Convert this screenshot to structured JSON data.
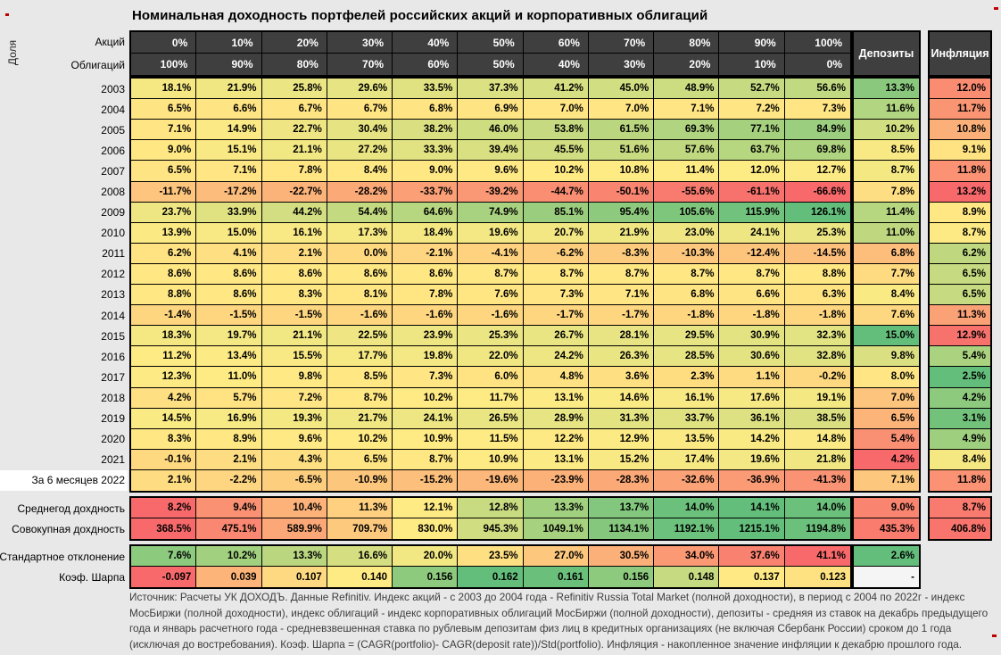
{
  "title": "Номинальная доходность портфелей российских акций и корпоративных облигаций",
  "share_label": "Доля",
  "header": {
    "stocks_label": "Акций",
    "bonds_label": "Облигаций",
    "deposits_label": "Депозиты",
    "inflation_label": "Инфляция"
  },
  "chart_data": {
    "type": "heatmap",
    "title": "Номинальная доходность портфелей российских акций и корпоративных облигаций",
    "stocks_share_pct": [
      0,
      10,
      20,
      30,
      40,
      50,
      60,
      70,
      80,
      90,
      100
    ],
    "bonds_share_pct": [
      100,
      90,
      80,
      70,
      60,
      50,
      40,
      30,
      20,
      10,
      0
    ],
    "rows": [
      {
        "label": "2003",
        "values": [
          18.1,
          21.9,
          25.8,
          29.6,
          33.5,
          37.3,
          41.2,
          45.0,
          48.9,
          52.7,
          56.6
        ],
        "deposit": 13.3,
        "inflation": 12.0
      },
      {
        "label": "2004",
        "values": [
          6.5,
          6.6,
          6.7,
          6.7,
          6.8,
          6.9,
          7.0,
          7.0,
          7.1,
          7.2,
          7.3
        ],
        "deposit": 11.6,
        "inflation": 11.7
      },
      {
        "label": "2005",
        "values": [
          7.1,
          14.9,
          22.7,
          30.4,
          38.2,
          46.0,
          53.8,
          61.5,
          69.3,
          77.1,
          84.9
        ],
        "deposit": 10.2,
        "inflation": 10.8
      },
      {
        "label": "2006",
        "values": [
          9.0,
          15.1,
          21.1,
          27.2,
          33.3,
          39.4,
          45.5,
          51.6,
          57.6,
          63.7,
          69.8
        ],
        "deposit": 8.5,
        "inflation": 9.1
      },
      {
        "label": "2007",
        "values": [
          6.5,
          7.1,
          7.8,
          8.4,
          9.0,
          9.6,
          10.2,
          10.8,
          11.4,
          12.0,
          12.7
        ],
        "deposit": 8.7,
        "inflation": 11.8
      },
      {
        "label": "2008",
        "values": [
          -11.7,
          -17.2,
          -22.7,
          -28.2,
          -33.7,
          -39.2,
          -44.7,
          -50.1,
          -55.6,
          -61.1,
          -66.6
        ],
        "deposit": 7.8,
        "inflation": 13.2
      },
      {
        "label": "2009",
        "values": [
          23.7,
          33.9,
          44.2,
          54.4,
          64.6,
          74.9,
          85.1,
          95.4,
          105.6,
          115.9,
          126.1
        ],
        "deposit": 11.4,
        "inflation": 8.9
      },
      {
        "label": "2010",
        "values": [
          13.9,
          15.0,
          16.1,
          17.3,
          18.4,
          19.6,
          20.7,
          21.9,
          23.0,
          24.1,
          25.3
        ],
        "deposit": 11.0,
        "inflation": 8.7
      },
      {
        "label": "2011",
        "values": [
          6.2,
          4.1,
          2.1,
          0.0,
          -2.1,
          -4.1,
          -6.2,
          -8.3,
          -10.3,
          -12.4,
          -14.5
        ],
        "deposit": 6.8,
        "inflation": 6.2
      },
      {
        "label": "2012",
        "values": [
          8.6,
          8.6,
          8.6,
          8.6,
          8.6,
          8.7,
          8.7,
          8.7,
          8.7,
          8.7,
          8.8
        ],
        "deposit": 7.7,
        "inflation": 6.5
      },
      {
        "label": "2013",
        "values": [
          8.8,
          8.6,
          8.3,
          8.1,
          7.8,
          7.6,
          7.3,
          7.1,
          6.8,
          6.6,
          6.3
        ],
        "deposit": 8.4,
        "inflation": 6.5
      },
      {
        "label": "2014",
        "values": [
          -1.4,
          -1.5,
          -1.5,
          -1.6,
          -1.6,
          -1.6,
          -1.7,
          -1.7,
          -1.8,
          -1.8,
          -1.8
        ],
        "deposit": 7.6,
        "inflation": 11.3
      },
      {
        "label": "2015",
        "values": [
          18.3,
          19.7,
          21.1,
          22.5,
          23.9,
          25.3,
          26.7,
          28.1,
          29.5,
          30.9,
          32.3
        ],
        "deposit": 15.0,
        "inflation": 12.9
      },
      {
        "label": "2016",
        "values": [
          11.2,
          13.4,
          15.5,
          17.7,
          19.8,
          22.0,
          24.2,
          26.3,
          28.5,
          30.6,
          32.8
        ],
        "deposit": 9.8,
        "inflation": 5.4
      },
      {
        "label": "2017",
        "values": [
          12.3,
          11.0,
          9.8,
          8.5,
          7.3,
          6.0,
          4.8,
          3.6,
          2.3,
          1.1,
          -0.2
        ],
        "deposit": 8.0,
        "inflation": 2.5
      },
      {
        "label": "2018",
        "values": [
          4.2,
          5.7,
          7.2,
          8.7,
          10.2,
          11.7,
          13.1,
          14.6,
          16.1,
          17.6,
          19.1
        ],
        "deposit": 7.0,
        "inflation": 4.2
      },
      {
        "label": "2019",
        "values": [
          14.5,
          16.9,
          19.3,
          21.7,
          24.1,
          26.5,
          28.9,
          31.3,
          33.7,
          36.1,
          38.5
        ],
        "deposit": 6.5,
        "inflation": 3.1
      },
      {
        "label": "2020",
        "values": [
          8.3,
          8.9,
          9.6,
          10.2,
          10.9,
          11.5,
          12.2,
          12.9,
          13.5,
          14.2,
          14.8
        ],
        "deposit": 5.4,
        "inflation": 4.9
      },
      {
        "label": "2021",
        "values": [
          -0.1,
          2.1,
          4.3,
          6.5,
          8.7,
          10.9,
          13.1,
          15.2,
          17.4,
          19.6,
          21.8
        ],
        "deposit": 4.2,
        "inflation": 8.4
      },
      {
        "label": "За 6 месяцев 2022",
        "values": [
          2.1,
          -2.2,
          -6.5,
          -10.9,
          -15.2,
          -19.6,
          -23.9,
          -28.3,
          -32.6,
          -36.9,
          -41.3
        ],
        "deposit": 7.1,
        "inflation": 11.8,
        "highlight_label": true
      }
    ],
    "summary": [
      {
        "label": "Среднегод дохдность",
        "format": "pct",
        "values": [
          8.2,
          9.4,
          10.4,
          11.3,
          12.1,
          12.8,
          13.3,
          13.7,
          14.0,
          14.1,
          14.0
        ],
        "deposit": 9.0,
        "inflation": 8.7
      },
      {
        "label": "Совокупная дохдность",
        "format": "pct",
        "values": [
          368.5,
          475.1,
          589.9,
          709.7,
          830.0,
          945.3,
          1049.1,
          1134.1,
          1192.1,
          1215.1,
          1194.8
        ],
        "deposit": 435.3,
        "inflation": 406.8
      },
      {
        "label": "Стандартное отклонение",
        "format": "pct",
        "invert": true,
        "values": [
          7.6,
          10.2,
          13.3,
          16.6,
          20.0,
          23.5,
          27.0,
          30.5,
          34.0,
          37.6,
          41.1
        ],
        "deposit": 2.6
      },
      {
        "label": "Коэф. Шарпа",
        "format": "num3",
        "values": [
          -0.097,
          0.039,
          0.107,
          0.14,
          0.156,
          0.162,
          0.161,
          0.156,
          0.148,
          0.137,
          0.123
        ],
        "deposit_display": "-"
      }
    ],
    "color_scale": {
      "low": "#F8696B",
      "mid": "#FFEB84",
      "high": "#63BE7B",
      "midpoint": "50th percentile",
      "inflation_inverted": true,
      "stddev_inverted": true
    },
    "legend_position": "none",
    "grid": true
  },
  "footer": {
    "text": "Источник: Расчеты УК ДОХОДЪ. Данные Refinitiv. Индекс акций - с 2003 до 2004 года - Refinitiv Russia Total Market (полной доходности), в период с 2004 по 2022г - индекс МосБиржи (полной доходности), индекс облигаций - индекс корпоративных облигаций МосБиржи (полной доходности), депозиты - средняя из ставок на декабрь предыдущего года и январь расчетного года - средневзвешенная ставка по рублевым депозитам физ лиц в кредитных организациях (не включая Сбербанк России) сроком до 1 года (исключая до востребования). Коэф. Шарпа = (CAGR(portfolio)- CAGR(deposit rate))/Std(portfolio). Инфляция - накопленное значение инфляции к декабрю прошлого года."
  }
}
